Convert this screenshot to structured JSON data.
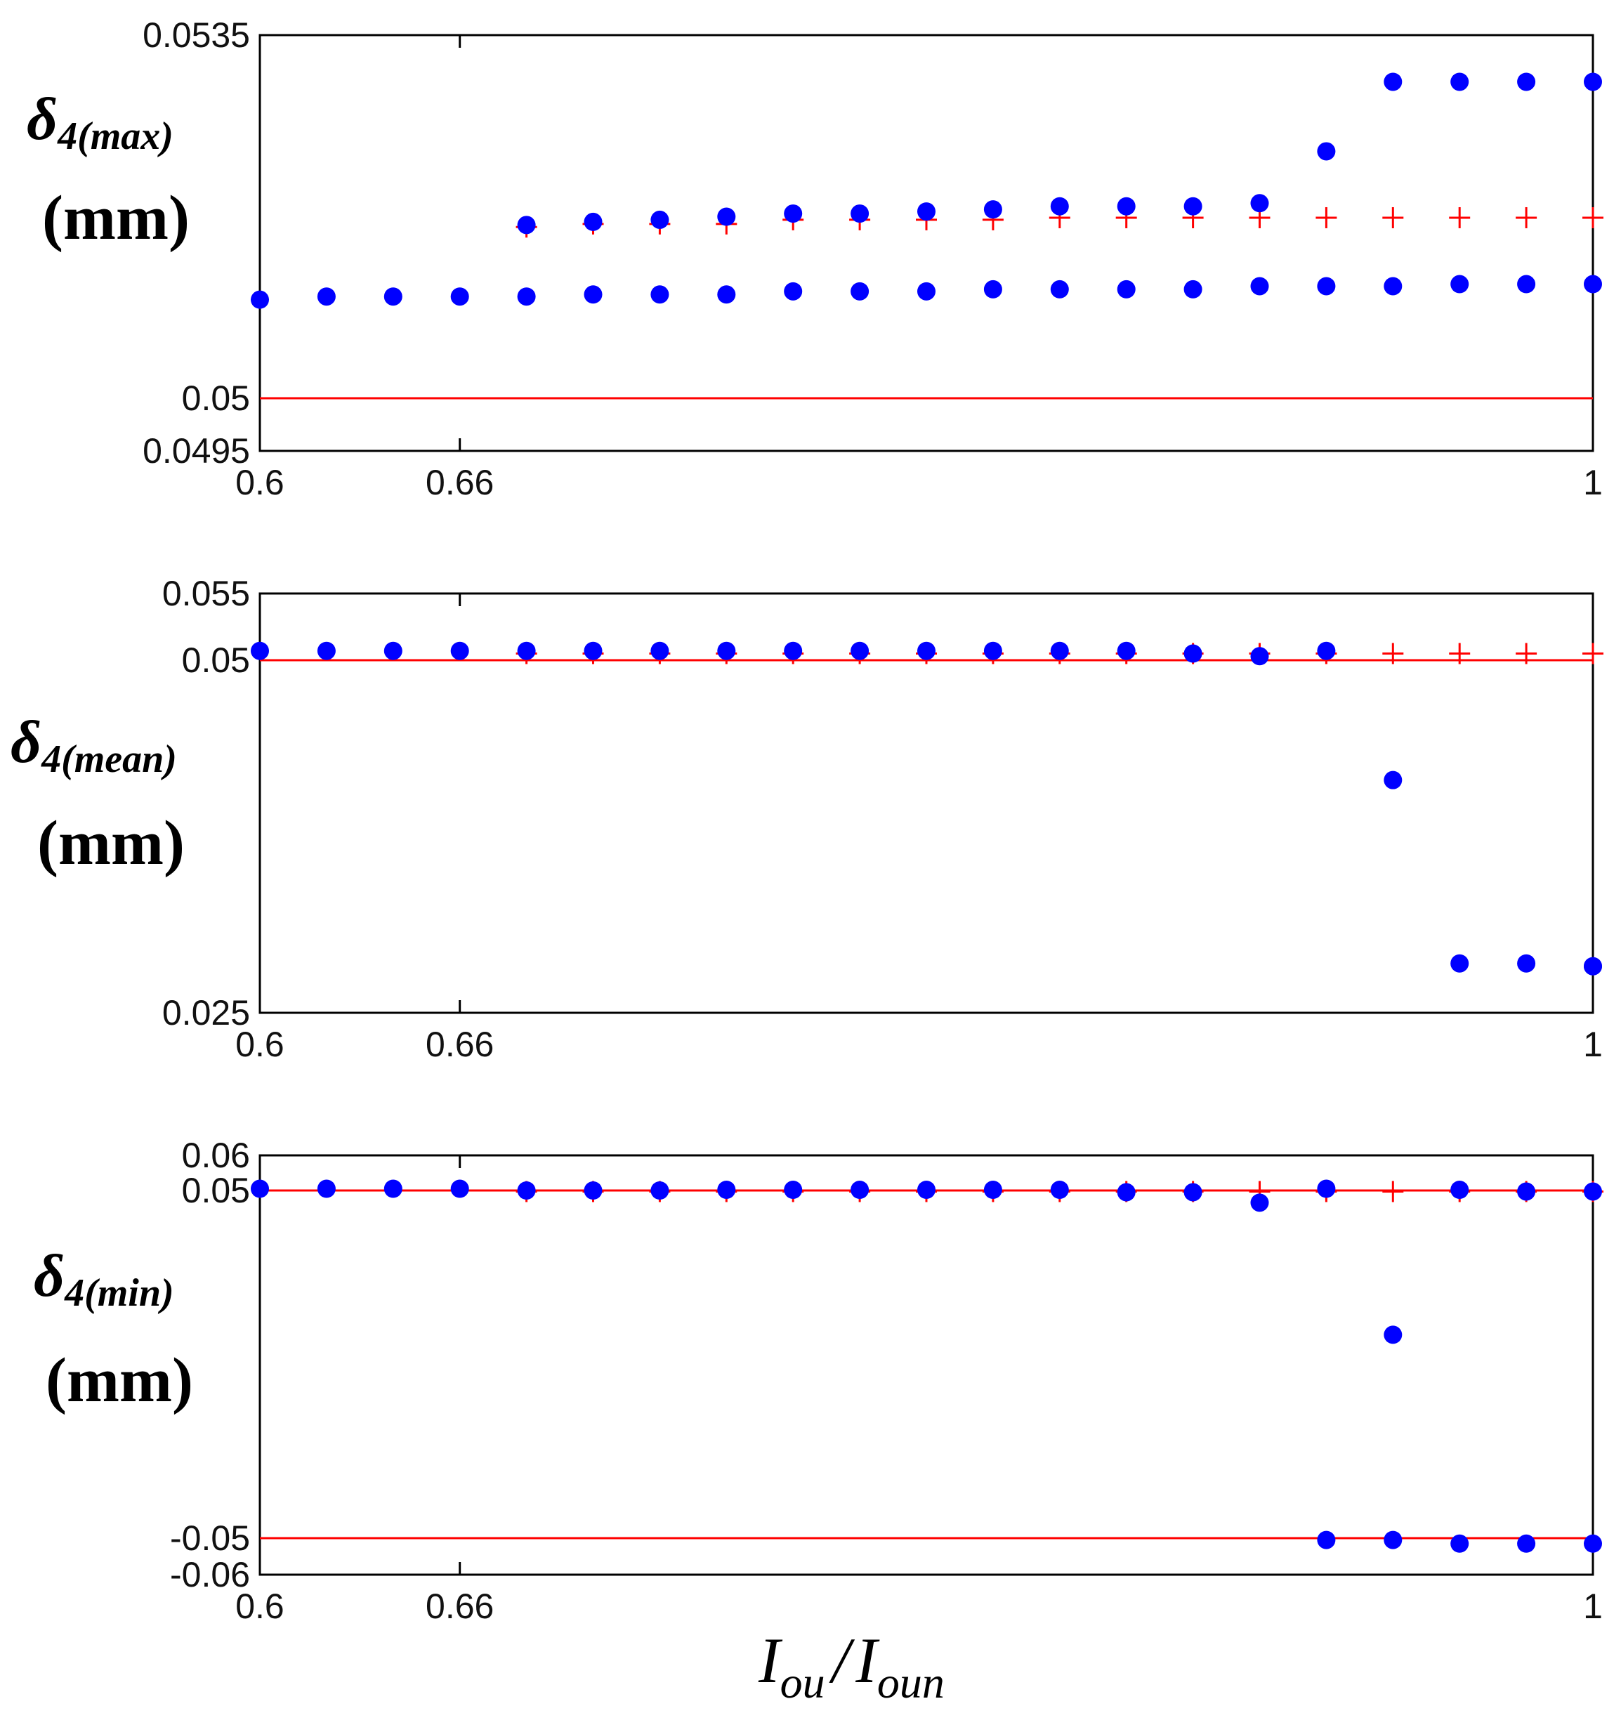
{
  "chart_data": [
    {
      "type": "scatter",
      "ylabel": {
        "symbol": "δ",
        "subscript": "4(max)",
        "unit": "(mm)"
      },
      "xlim": [
        0.6,
        1.0
      ],
      "ylim": [
        0.0495,
        0.0535
      ],
      "xticks": [
        0.6,
        0.66,
        1.0
      ],
      "xtick_labels": [
        "0.6",
        "0.66",
        "1"
      ],
      "yticks": [
        0.0535,
        0.05,
        0.0495
      ],
      "ytick_labels": [
        "0.0535",
        "0.05",
        "0.0495"
      ],
      "hlines": [
        0.05
      ],
      "series": [
        {
          "marker": "plus",
          "color": "#ff0000",
          "x": [
            0.68,
            0.7,
            0.72,
            0.74,
            0.76,
            0.78,
            0.8,
            0.82,
            0.84,
            0.86,
            0.88,
            0.9,
            0.92,
            0.94,
            0.96,
            0.98,
            1.0
          ],
          "y": [
            0.05165,
            0.05168,
            0.05168,
            0.05168,
            0.05172,
            0.05172,
            0.05172,
            0.05172,
            0.05174,
            0.05174,
            0.05174,
            0.05174,
            0.05174,
            0.05174,
            0.05174,
            0.05174,
            0.05174
          ]
        },
        {
          "marker": "dot",
          "color": "#0000ff",
          "x": [
            0.68,
            0.7,
            0.72,
            0.74,
            0.76,
            0.78,
            0.8,
            0.82,
            0.84,
            0.86,
            0.88,
            0.9,
            0.92,
            0.94,
            0.96,
            0.98,
            1.0
          ],
          "y": [
            0.05167,
            0.0517,
            0.05172,
            0.05175,
            0.05178,
            0.05178,
            0.0518,
            0.05182,
            0.05185,
            0.05185,
            0.05185,
            0.05188,
            0.05238,
            0.05305,
            0.05305,
            0.05305,
            0.05305
          ]
        },
        {
          "marker": "dot",
          "color": "#0000ff",
          "x": [
            0.6,
            0.62,
            0.64,
            0.66,
            0.68,
            0.7,
            0.72,
            0.74,
            0.76,
            0.78,
            0.8,
            0.82,
            0.84,
            0.86,
            0.88,
            0.9,
            0.92,
            0.94,
            0.96,
            0.98,
            1.0
          ],
          "y": [
            0.05095,
            0.05098,
            0.05098,
            0.05098,
            0.05098,
            0.051,
            0.051,
            0.051,
            0.05103,
            0.05103,
            0.05103,
            0.05105,
            0.05105,
            0.05105,
            0.05105,
            0.05108,
            0.05108,
            0.05108,
            0.0511,
            0.0511,
            0.0511
          ]
        }
      ]
    },
    {
      "type": "scatter",
      "ylabel": {
        "symbol": "δ",
        "subscript": "4(mean)",
        "unit": "(mm)"
      },
      "xlim": [
        0.6,
        1.0
      ],
      "ylim": [
        0.025,
        0.055
      ],
      "xticks": [
        0.6,
        0.66,
        1.0
      ],
      "xtick_labels": [
        "0.6",
        "0.66",
        "1"
      ],
      "yticks": [
        0.055,
        0.05,
        0.025
      ],
      "ytick_labels": [
        "0.055",
        "0.05",
        "0.025"
      ],
      "hlines": [
        0.05
      ],
      "series": [
        {
          "marker": "plus",
          "color": "#ff0000",
          "x": [
            0.68,
            0.7,
            0.72,
            0.74,
            0.76,
            0.78,
            0.8,
            0.82,
            0.84,
            0.86,
            0.88,
            0.9,
            0.92,
            0.94,
            0.96,
            0.98,
            1.0
          ],
          "y": [
            0.0505,
            0.0505,
            0.0505,
            0.0505,
            0.0505,
            0.0505,
            0.0505,
            0.0505,
            0.0505,
            0.0505,
            0.0505,
            0.0505,
            0.0505,
            0.0505,
            0.0505,
            0.0505,
            0.0505
          ]
        },
        {
          "marker": "dot",
          "color": "#0000ff",
          "x": [
            0.6,
            0.62,
            0.64,
            0.66,
            0.68,
            0.7,
            0.72,
            0.74,
            0.76,
            0.78,
            0.8,
            0.82,
            0.84,
            0.86,
            0.88,
            0.9,
            0.92,
            0.94,
            0.96,
            0.98,
            1.0
          ],
          "y": [
            0.0507,
            0.0507,
            0.0507,
            0.0507,
            0.0507,
            0.0507,
            0.0507,
            0.0507,
            0.0507,
            0.0507,
            0.0507,
            0.0507,
            0.0507,
            0.0507,
            0.0505,
            0.0503,
            0.0507,
            0.0415,
            0.0285,
            0.0285,
            0.0283
          ]
        },
        {
          "marker": "dot",
          "color": "#0000ff",
          "x": [
            1.0
          ],
          "y": [
            0.0283
          ]
        }
      ]
    },
    {
      "type": "scatter",
      "ylabel": {
        "symbol": "δ",
        "subscript": "4(min)",
        "unit": "(mm)"
      },
      "xlim": [
        0.6,
        1.0
      ],
      "ylim": [
        -0.06,
        0.06
      ],
      "xticks": [
        0.6,
        0.66,
        1.0
      ],
      "xtick_labels": [
        "0.6",
        "0.66",
        "1"
      ],
      "xlabel": {
        "main1": "I",
        "sub1": "ou",
        "slash": "/",
        "main2": "I",
        "sub2": "oun"
      },
      "yticks": [
        0.06,
        0.05,
        -0.05,
        -0.06
      ],
      "ytick_labels": [
        "0.06",
        "0.05",
        "-0.05",
        "-0.06"
      ],
      "hlines": [
        0.05,
        -0.05
      ],
      "series": [
        {
          "marker": "plus",
          "color": "#ff0000",
          "x": [
            0.68,
            0.7,
            0.72,
            0.74,
            0.76,
            0.78,
            0.8,
            0.82,
            0.84,
            0.86,
            0.88,
            0.9,
            0.92,
            0.94,
            0.96,
            0.98,
            1.0
          ],
          "y": [
            0.0497,
            0.0497,
            0.0497,
            0.0497,
            0.0497,
            0.0497,
            0.0497,
            0.0497,
            0.0497,
            0.0497,
            0.0497,
            0.0497,
            0.0497,
            0.0497,
            0.0497,
            0.0497,
            0.0497
          ]
        },
        {
          "marker": "dot",
          "color": "#0000ff",
          "x": [
            0.6,
            0.62,
            0.64,
            0.66,
            0.68,
            0.7,
            0.72,
            0.74,
            0.76,
            0.78,
            0.8,
            0.82,
            0.84,
            0.86,
            0.88,
            0.9,
            0.92,
            0.94,
            0.96,
            0.98,
            1.0
          ],
          "y": [
            0.0505,
            0.0505,
            0.0505,
            0.0505,
            0.05,
            0.05,
            0.05,
            0.0502,
            0.0502,
            0.0502,
            0.0502,
            0.0502,
            0.0502,
            0.0495,
            0.0495,
            0.0465,
            0.0505,
            0.0085,
            0.0502,
            0.0497,
            0.0497
          ]
        },
        {
          "marker": "dot",
          "color": "#0000ff",
          "x": [
            0.92,
            0.94,
            0.96,
            0.98,
            1.0
          ],
          "y": [
            -0.0505,
            -0.0505,
            -0.0515,
            -0.0515,
            -0.0515
          ]
        }
      ]
    }
  ]
}
